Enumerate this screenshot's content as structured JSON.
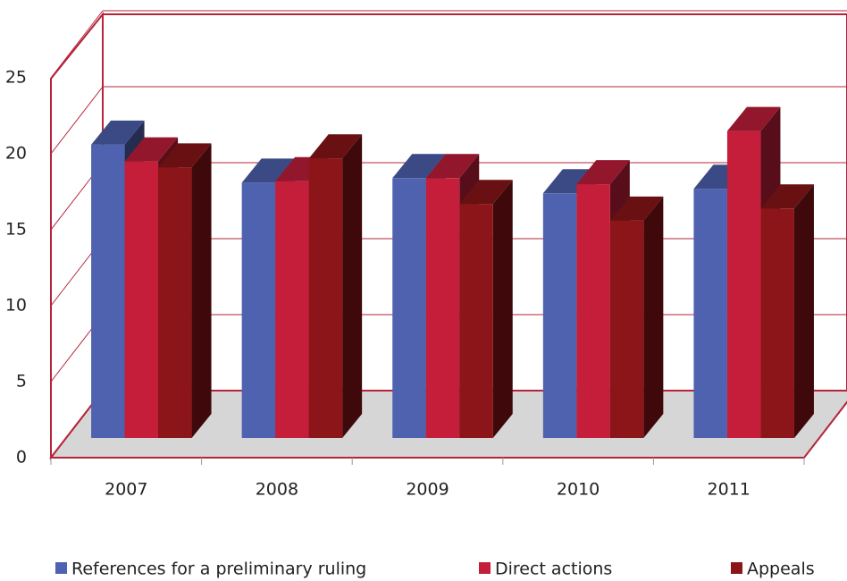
{
  "chart_data": {
    "type": "bar3d",
    "categories": [
      "2007",
      "2008",
      "2009",
      "2010",
      "2011"
    ],
    "series": [
      {
        "name": "References for a preliminary ruling",
        "color": "#4f62b0",
        "values": [
          19.3,
          16.8,
          17.1,
          16.1,
          16.4
        ]
      },
      {
        "name": "Direct actions",
        "color": "#c41e3a",
        "values": [
          18.2,
          16.9,
          17.1,
          16.7,
          20.2
        ]
      },
      {
        "name": "Appeals",
        "color": "#8b1518",
        "values": [
          17.8,
          18.4,
          15.4,
          14.3,
          15.1
        ]
      }
    ],
    "ylim": [
      0,
      25
    ],
    "yticks": [
      0,
      5,
      10,
      15,
      20,
      25
    ],
    "grid": true
  }
}
